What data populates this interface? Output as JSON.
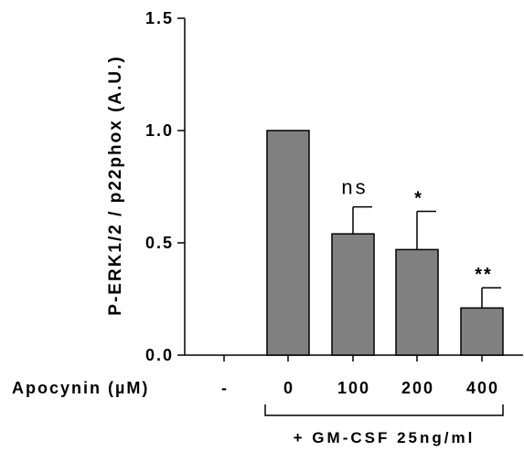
{
  "chart_data": {
    "type": "bar",
    "ylabel": "P-ERK1/2 / p22phox (A.U.)",
    "ylim": [
      0,
      1.5
    ],
    "yticks": [
      "0.0",
      "0.5",
      "1.0",
      "1.5"
    ],
    "x_title": "Apocynin (µM)",
    "categories": [
      "-",
      "0",
      "100",
      "200",
      "400"
    ],
    "values": [
      0,
      1.0,
      0.54,
      0.47,
      0.21
    ],
    "errors": [
      0,
      0,
      0.12,
      0.17,
      0.09
    ],
    "annotations": [
      "",
      "",
      "ns",
      "*",
      "**"
    ],
    "group_label": "+ GM-CSF 25ng/ml",
    "bar_color": "#808080",
    "grid": false,
    "legend": "none"
  }
}
